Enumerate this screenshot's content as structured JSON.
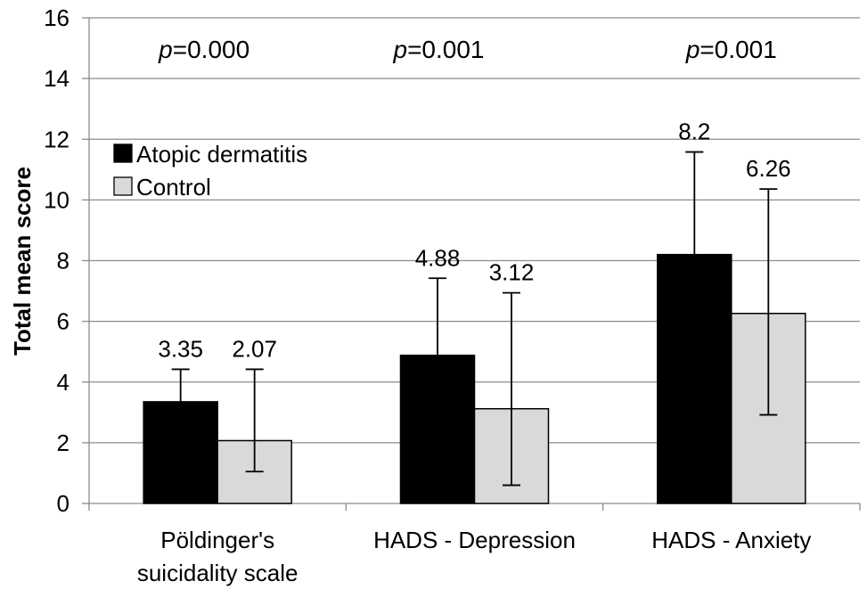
{
  "chart_data": {
    "type": "bar",
    "title": "",
    "xlabel": "",
    "ylabel": "Total mean score",
    "ylim": [
      0,
      16
    ],
    "yticks": [
      0,
      2,
      4,
      6,
      8,
      10,
      12,
      14,
      16
    ],
    "grid": true,
    "legend_position": "top-left",
    "categories": [
      [
        "Pöldinger's",
        "suicidality scale"
      ],
      [
        "HADS - Depression"
      ],
      [
        "HADS - Anxiety"
      ]
    ],
    "series": [
      {
        "name": "Atopic dermatitis",
        "color": "#000000",
        "values": [
          3.35,
          4.88,
          8.2
        ],
        "labels": [
          "3.35",
          "4.88",
          "8.2"
        ],
        "error_upper": [
          4.42,
          7.42,
          11.58
        ],
        "error_lower": [
          null,
          null,
          null
        ]
      },
      {
        "name": "Control",
        "color": "#d9d9d9",
        "values": [
          2.07,
          3.12,
          6.26
        ],
        "labels": [
          "2.07",
          "3.12",
          "6.26"
        ],
        "error_upper": [
          4.42,
          6.94,
          10.36
        ],
        "error_lower": [
          1.05,
          0.6,
          2.92
        ]
      }
    ],
    "annotations": [
      {
        "prefix": "p",
        "text": "=0.000"
      },
      {
        "prefix": "p",
        "text": "=0.001"
      },
      {
        "prefix": "p",
        "text": "=0.001"
      }
    ]
  }
}
